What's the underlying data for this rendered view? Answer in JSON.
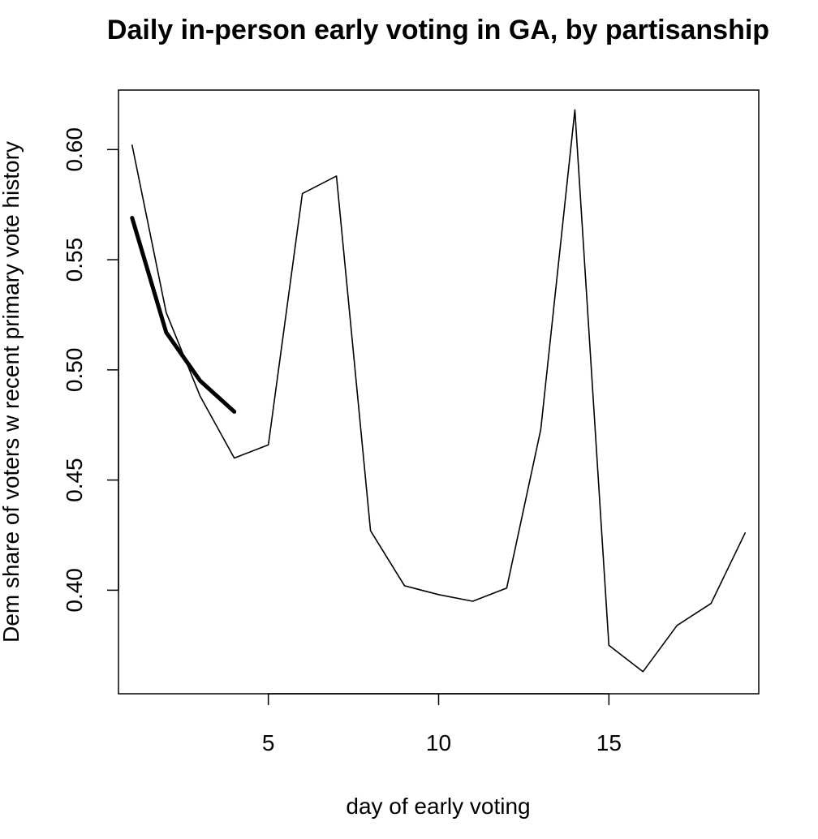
{
  "chart_data": {
    "type": "line",
    "title": "Daily in-person early voting in GA, by partisanship",
    "xlabel": "day of early voting",
    "ylabel": "Dem share of voters w recent primary vote history",
    "xlim": [
      0.6,
      19.4
    ],
    "ylim": [
      0.353,
      0.627
    ],
    "xticks": [
      5,
      10,
      15
    ],
    "xtick_labels": [
      "5",
      "10",
      "15"
    ],
    "yticks": [
      0.4,
      0.45,
      0.5,
      0.55,
      0.6
    ],
    "ytick_labels": [
      "0.40",
      "0.45",
      "0.50",
      "0.55",
      "0.60"
    ],
    "grid": false,
    "legend": false,
    "series": [
      {
        "style": "thin",
        "x": [
          1,
          2,
          3,
          4,
          5,
          6,
          7,
          8,
          9,
          10,
          11,
          12,
          13,
          14,
          15,
          16,
          17,
          18,
          19
        ],
        "y": [
          0.602,
          0.526,
          0.488,
          0.46,
          0.466,
          0.58,
          0.588,
          0.427,
          0.402,
          0.398,
          0.395,
          0.401,
          0.473,
          0.618,
          0.375,
          0.363,
          0.384,
          0.394,
          0.426
        ]
      },
      {
        "style": "thick",
        "x": [
          1,
          2,
          3,
          4
        ],
        "y": [
          0.569,
          0.517,
          0.495,
          0.481
        ]
      }
    ]
  }
}
